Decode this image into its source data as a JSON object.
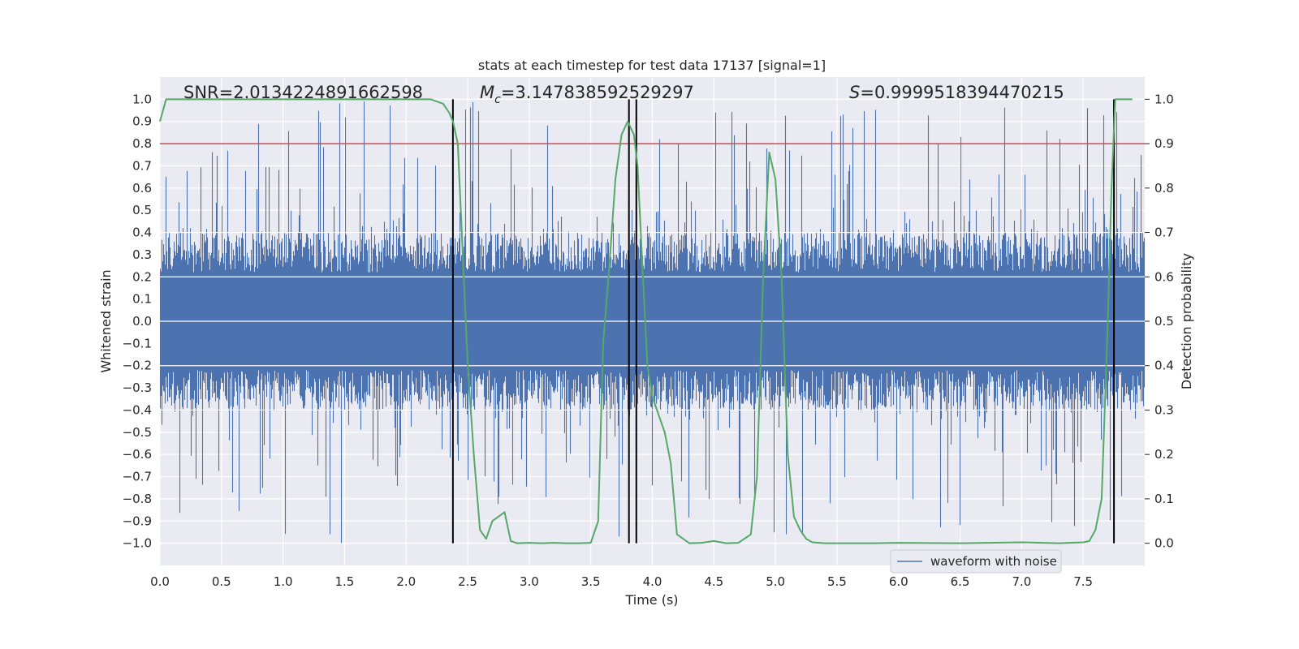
{
  "chart_data": {
    "type": "line",
    "title": "stats at each timestep for test data 17137 [signal=1]",
    "xlabel": "Time (s)",
    "ylabel_left": "Whitened strain",
    "ylabel_right": "Detection probability",
    "xlim": [
      0.0,
      8.0
    ],
    "ylim_left": [
      -1.1,
      1.1
    ],
    "ylim_right": [
      -0.05,
      1.05
    ],
    "grid": true,
    "background_color": "#eaeaf2",
    "x_ticks": [
      "0.0",
      "0.5",
      "1.0",
      "1.5",
      "2.0",
      "2.5",
      "3.0",
      "3.5",
      "4.0",
      "4.5",
      "5.0",
      "5.5",
      "6.0",
      "6.5",
      "7.0",
      "7.5"
    ],
    "y_ticks_left": [
      "1.0",
      "0.9",
      "0.8",
      "0.7",
      "0.6",
      "0.5",
      "0.4",
      "0.3",
      "0.2",
      "0.1",
      "0.0",
      "−0.1",
      "−0.2",
      "−0.3",
      "−0.4",
      "−0.5",
      "−0.6",
      "−0.7",
      "−0.8",
      "−0.9",
      "−1.0"
    ],
    "y_ticks_right": [
      "1.0",
      "0.9",
      "0.8",
      "0.7",
      "0.6",
      "0.5",
      "0.4",
      "0.3",
      "0.2",
      "0.1",
      "0.0"
    ],
    "annotations": {
      "snr_text": "SNR=2.0134224891662598",
      "mc_symbol": "M",
      "mc_subscript": "c",
      "mc_value": "=3.147838592529297",
      "s_symbol": "S",
      "s_value": "=0.9999518394470215"
    },
    "series": [
      {
        "name": "waveform with noise",
        "axis": "left",
        "color": "#4c72b0",
        "kind": "noise-band",
        "typical_amplitude": 0.4,
        "peak_max": 1.0,
        "peak_min": -1.0
      },
      {
        "axis": "right",
        "color": "#55a868",
        "kind": "line",
        "x": [
          0.0,
          0.05,
          0.1,
          0.5,
          1.0,
          1.5,
          2.0,
          2.2,
          2.3,
          2.35,
          2.38,
          2.42,
          2.5,
          2.55,
          2.6,
          2.65,
          2.7,
          2.75,
          2.8,
          2.85,
          2.9,
          3.0,
          3.1,
          3.2,
          3.3,
          3.4,
          3.5,
          3.56,
          3.6,
          3.65,
          3.7,
          3.75,
          3.8,
          3.85,
          3.88,
          3.92,
          3.96,
          4.0,
          4.05,
          4.1,
          4.15,
          4.2,
          4.3,
          4.4,
          4.5,
          4.6,
          4.7,
          4.8,
          4.85,
          4.9,
          4.95,
          5.0,
          5.05,
          5.1,
          5.15,
          5.2,
          5.25,
          5.3,
          5.4,
          5.6,
          5.8,
          6.0,
          6.5,
          7.0,
          7.3,
          7.5,
          7.55,
          7.6,
          7.65,
          7.7,
          7.73,
          7.76,
          7.8,
          7.9
        ],
        "values": [
          0.95,
          1.0,
          1.0,
          1.0,
          1.0,
          1.0,
          1.0,
          1.0,
          0.99,
          0.97,
          0.95,
          0.9,
          0.4,
          0.2,
          0.03,
          0.01,
          0.05,
          0.06,
          0.07,
          0.005,
          0.0,
          0.001,
          0.0,
          0.001,
          0.0,
          0.0,
          0.001,
          0.05,
          0.45,
          0.62,
          0.82,
          0.92,
          0.95,
          0.92,
          0.85,
          0.62,
          0.4,
          0.33,
          0.29,
          0.25,
          0.18,
          0.02,
          0.0,
          0.001,
          0.005,
          0.0,
          0.001,
          0.02,
          0.15,
          0.6,
          0.88,
          0.82,
          0.6,
          0.2,
          0.06,
          0.03,
          0.01,
          0.002,
          0.0,
          0.0,
          0.0,
          0.001,
          0.0,
          0.002,
          0.0,
          0.002,
          0.005,
          0.03,
          0.1,
          0.5,
          0.8,
          1.0,
          1.0,
          1.0
        ]
      }
    ],
    "threshold_line": {
      "axis": "right",
      "value": 0.9,
      "color": "#c44e52"
    },
    "vertical_lines": {
      "x": [
        2.38,
        3.81,
        3.87,
        7.75
      ],
      "ymin": -1.0,
      "ymax": 1.0,
      "color": "#000000"
    },
    "legend": {
      "placement": "bottom-right",
      "entries": [
        "waveform with noise"
      ]
    }
  }
}
